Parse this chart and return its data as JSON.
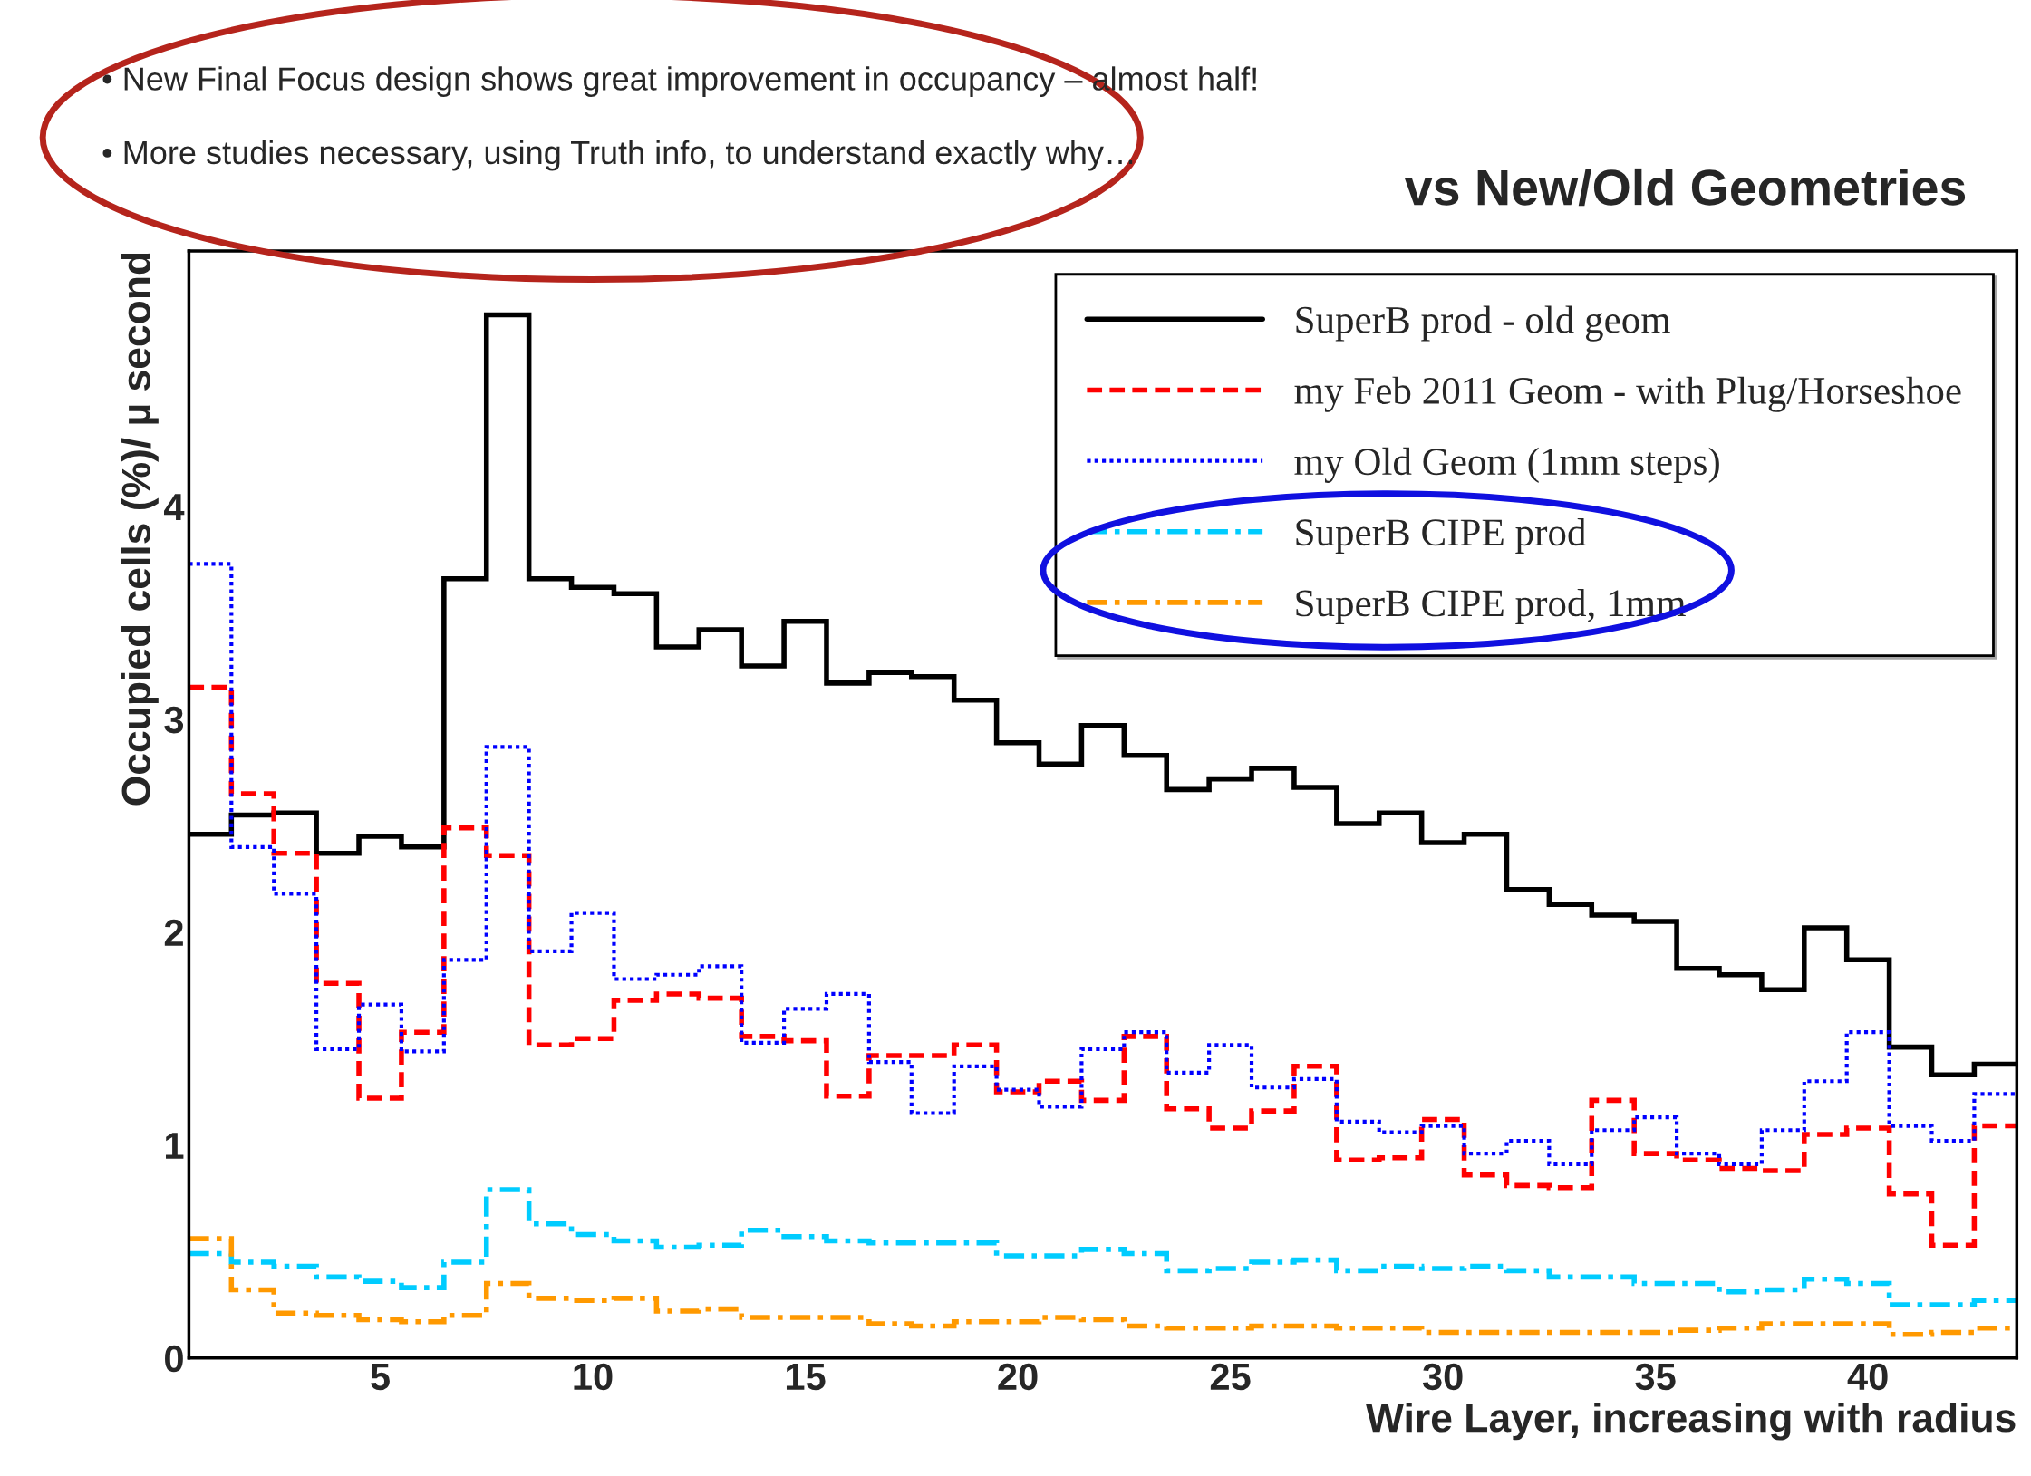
{
  "chart_data": {
    "type": "histogram",
    "title": "vs New/Old Geometries",
    "xlabel": "Wire Layer, increasing with radius",
    "ylabel": "Occupied cells (%)/ µ second",
    "bins": [
      0.5,
      1.5,
      2.5,
      3.5,
      4.5,
      5.5,
      6.5,
      7.5,
      8.5,
      9.5,
      10.5,
      11.5,
      12.5,
      13.5,
      14.5,
      15.5,
      16.5,
      17.5,
      18.5,
      19.5,
      20.5,
      21.5,
      22.5,
      23.5,
      24.5,
      25.5,
      26.5,
      27.5,
      28.5,
      29.5,
      30.5,
      31.5,
      32.5,
      33.5,
      34.5,
      35.5,
      36.5,
      37.5,
      38.5,
      39.5,
      40.5,
      41.5,
      42.5,
      43.5
    ],
    "xlim": [
      0.5,
      43.5
    ],
    "xticks": [
      5,
      10,
      15,
      20,
      25,
      30,
      35,
      40
    ],
    "ylim": [
      0,
      5.2
    ],
    "yticks": [
      0,
      1,
      2,
      3,
      4
    ],
    "grid": false,
    "legend": "top right",
    "series": [
      {
        "name": "SuperB prod - old geom",
        "color": "#000000",
        "line_style": "solid",
        "values": [
          2.46,
          2.55,
          2.56,
          2.37,
          2.45,
          2.4,
          3.66,
          4.9,
          3.66,
          3.62,
          3.59,
          3.34,
          3.42,
          3.25,
          3.46,
          3.17,
          3.22,
          3.2,
          3.09,
          2.89,
          2.79,
          2.97,
          2.83,
          2.67,
          2.72,
          2.77,
          2.68,
          2.51,
          2.56,
          2.42,
          2.46,
          2.2,
          2.13,
          2.08,
          2.05,
          1.83,
          1.8,
          1.73,
          2.02,
          1.87,
          1.46,
          1.33,
          1.38
        ]
      },
      {
        "name": "my Feb 2011 Geom - with Plug/Horseshoe",
        "color": "#ff0000",
        "line_style": "dashed",
        "values": [
          3.15,
          2.65,
          2.37,
          1.76,
          1.22,
          1.53,
          2.49,
          2.36,
          1.47,
          1.5,
          1.68,
          1.71,
          1.69,
          1.51,
          1.49,
          1.23,
          1.42,
          1.42,
          1.47,
          1.25,
          1.3,
          1.21,
          1.51,
          1.17,
          1.08,
          1.16,
          1.37,
          0.93,
          0.94,
          1.12,
          0.86,
          0.81,
          0.8,
          1.21,
          0.96,
          0.93,
          0.89,
          0.88,
          1.05,
          1.08,
          0.77,
          0.53,
          1.09
        ]
      },
      {
        "name": "my Old Geom (1mm steps)",
        "color": "#0000ff",
        "line_style": "dotted",
        "values": [
          3.73,
          2.4,
          2.18,
          1.45,
          1.66,
          1.44,
          1.87,
          2.87,
          1.91,
          2.09,
          1.78,
          1.8,
          1.84,
          1.48,
          1.64,
          1.71,
          1.39,
          1.15,
          1.37,
          1.26,
          1.18,
          1.45,
          1.53,
          1.34,
          1.47,
          1.27,
          1.31,
          1.11,
          1.06,
          1.09,
          0.96,
          1.02,
          0.91,
          1.07,
          1.13,
          0.96,
          0.91,
          1.07,
          1.3,
          1.53,
          1.09,
          1.02,
          1.24
        ]
      },
      {
        "name": "SuperB CIPE prod",
        "color": "#00ccff",
        "line_style": "dashdot",
        "values": [
          0.49,
          0.45,
          0.43,
          0.38,
          0.36,
          0.33,
          0.45,
          0.79,
          0.63,
          0.58,
          0.55,
          0.52,
          0.53,
          0.6,
          0.57,
          0.55,
          0.54,
          0.54,
          0.54,
          0.48,
          0.48,
          0.51,
          0.49,
          0.41,
          0.42,
          0.45,
          0.46,
          0.41,
          0.43,
          0.42,
          0.43,
          0.41,
          0.38,
          0.38,
          0.35,
          0.35,
          0.31,
          0.32,
          0.37,
          0.35,
          0.25,
          0.25,
          0.27
        ]
      },
      {
        "name": "SuperB CIPE prod, 1mm",
        "color": "#ff9900",
        "line_style": "dashdot",
        "values": [
          0.56,
          0.32,
          0.21,
          0.2,
          0.18,
          0.17,
          0.2,
          0.35,
          0.28,
          0.27,
          0.28,
          0.22,
          0.23,
          0.19,
          0.19,
          0.19,
          0.16,
          0.15,
          0.17,
          0.17,
          0.19,
          0.18,
          0.15,
          0.14,
          0.14,
          0.15,
          0.15,
          0.14,
          0.14,
          0.12,
          0.12,
          0.12,
          0.12,
          0.12,
          0.12,
          0.13,
          0.14,
          0.16,
          0.16,
          0.16,
          0.11,
          0.12,
          0.14
        ]
      }
    ],
    "annotations": [
      "• New Final Focus design shows great improvement in occupancy – almost half!",
      "• More studies necessary, using Truth info, to understand exactly why…"
    ]
  }
}
